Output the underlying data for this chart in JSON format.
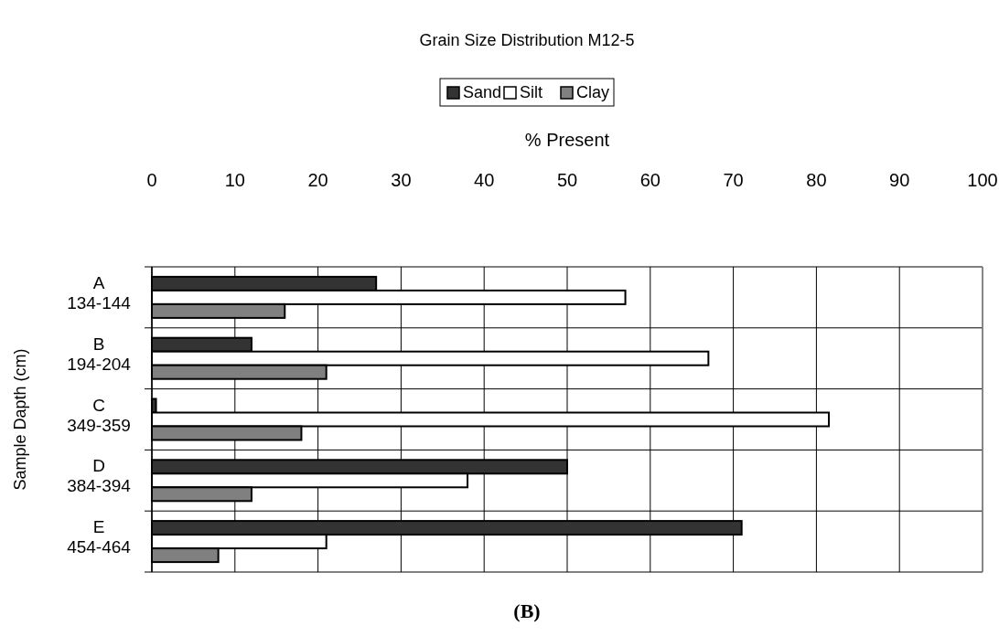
{
  "chart_data": {
    "type": "bar",
    "orientation": "horizontal",
    "title": "Grain Size Distribution M12-5",
    "xlabel": "% Present",
    "ylabel": "Sample Dapth (cm)",
    "categories": [
      "A\n134-144",
      "B\n194-204",
      "C\n349-359",
      "D\n384-394",
      "E\n454-464"
    ],
    "series": [
      {
        "name": "Sand",
        "color": "#333333",
        "values": [
          27,
          12,
          0.5,
          50,
          71
        ]
      },
      {
        "name": "Silt",
        "color": "#ffffff",
        "values": [
          57,
          67,
          81.5,
          38,
          21
        ]
      },
      {
        "name": "Clay",
        "color": "#808080",
        "values": [
          16,
          21,
          18,
          12,
          8
        ]
      }
    ],
    "xlim": [
      0,
      100
    ],
    "xticks": [
      0,
      10,
      20,
      30,
      40,
      50,
      60,
      70,
      80,
      90,
      100
    ],
    "grid": "x",
    "legend": "top",
    "annotations": [
      "(B)"
    ]
  }
}
